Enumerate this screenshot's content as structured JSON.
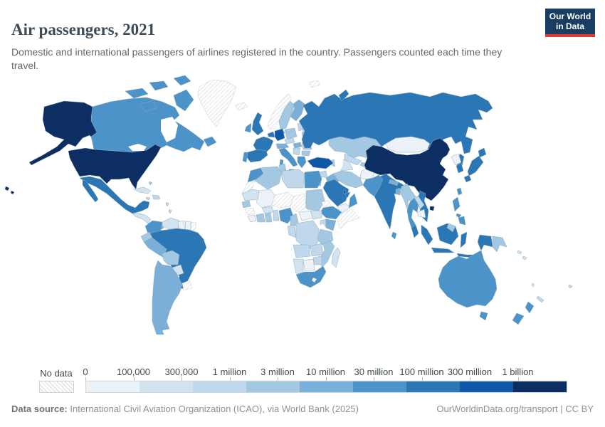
{
  "header": {
    "title": "Air passengers, 2021",
    "subtitle": "Domestic and international passengers of airlines registered in the country. Passengers counted each time they travel.",
    "logo": {
      "line1": "Our World",
      "line2": "in Data",
      "bg": "#1a3e63",
      "accent": "#e0392f"
    }
  },
  "legend": {
    "no_data_label": "No data",
    "ticks": [
      "0",
      "100,000",
      "300,000",
      "1 million",
      "3 million",
      "10 million",
      "30 million",
      "100 million",
      "300 million",
      "1 billion"
    ],
    "colors": [
      "#edf2f8",
      "#d2e3f0",
      "#c0d8eb",
      "#a3c8e2",
      "#7ab0d7",
      "#4b93c8",
      "#2b76b4",
      "#0f57a8",
      "#0d2e63"
    ]
  },
  "chart_data": {
    "type": "heatmap",
    "variant": "choropleth-world-map",
    "title": "Air passengers, 2021",
    "unit": "passengers carried per year",
    "legend_ticks": [
      "0",
      "100,000",
      "300,000",
      "1 million",
      "3 million",
      "10 million",
      "30 million",
      "100 million",
      "300 million",
      "1 billion"
    ],
    "bin_labels": [
      "0–100,000",
      "100,000–300,000",
      "300,000–1 million",
      "1 million–3 million",
      "3 million–10 million",
      "10 million–30 million",
      "30 million–100 million",
      "100 million–300 million",
      "300 million–1 billion"
    ],
    "no_data_label": "No data",
    "values": {
      "United States": 9,
      "Canada": 6,
      "Greenland": 0,
      "Mexico": 7,
      "Central America": 2,
      "Costa Rica": 3,
      "Panama": 5,
      "Cuba": 2,
      "Hispaniola": 3,
      "Jamaica": 3,
      "Bahamas": 4,
      "Lesser Antilles": 3,
      "Colombia": 6,
      "Venezuela": 2,
      "Guyana": 1,
      "Suriname": 1,
      "French Guiana": 0,
      "Ecuador": 4,
      "Peru": 5,
      "Brazil": 7,
      "Bolivia": 4,
      "Paraguay": 2,
      "Uruguay": 0,
      "Argentina": 5,
      "Chile": 5,
      "Iceland": 0,
      "Norway": 0,
      "Sweden": 4,
      "Finland": 5,
      "Denmark": 6,
      "United Kingdom": 7,
      "Ireland": 6,
      "Netherlands": 7,
      "Germany": 8,
      "France": 7,
      "Spain": 7,
      "Portugal": 6,
      "Poland": 4,
      "Czechia": 3,
      "Austria": 5,
      "Italy": 6,
      "Hungary": 5,
      "Balkans": 3,
      "Romania": 4,
      "Bulgaria": 4,
      "Greece": 6,
      "Baltics": 3,
      "Belarus": 3,
      "Ukraine": 4,
      "Russia": 7,
      "Turkey": 8,
      "Syria": 3,
      "Iraq": 5,
      "Iran": 4,
      "Israel": 5,
      "Saudi Arabia": 7,
      "Yemen": 1,
      "Oman": 6,
      "United Arab Emirates": 7,
      "Qatar": 8,
      "Caucasus": 4,
      "Kazakhstan": 4,
      "Uzbekistan": 3,
      "Turkmenistan": 2,
      "Kyrgyzstan": 4,
      "Tajikistan": 4,
      "Afghanistan": 1,
      "Pakistan": 6,
      "India": 7,
      "Nepal": 5,
      "Bangladesh": 5,
      "Sri Lanka": 6,
      "China": 9,
      "Mongolia": 1,
      "North Korea": 1,
      "South Korea": 7,
      "Japan": 7,
      "Taiwan": 6,
      "Myanmar": 4,
      "Thailand": 6,
      "Laos": 3,
      "Cambodia": 1,
      "Vietnam": 7,
      "Malaysia": 7,
      "Brunei": 4,
      "Indonesia": 7,
      "Philippines": 6,
      "Papua New Guinea": 4,
      "Solomon Islands": 2,
      "Vanuatu": 2,
      "Australia": 6,
      "New Zealand": 6,
      "New Caledonia": 3,
      "Fiji": 3,
      "Morocco": 6,
      "Western Sahara": 0,
      "Algeria": 4,
      "Tunisia": 4,
      "Libya": 3,
      "Egypt": 6,
      "Mauritania": 2,
      "Mali": 1,
      "Niger": 0,
      "Chad": 0,
      "Sudan": 4,
      "Eritrea": 0,
      "Ethiopia": 6,
      "Somalia": 0,
      "Senegal": 4,
      "Guinea": 0,
      "Sierra Leone": 1,
      "Cote d'Ivoire": 4,
      "Ghana": 4,
      "Burkina Faso": 2,
      "Benin": 3,
      "Nigeria": 6,
      "Cameroon": 4,
      "Central African Republic": 1,
      "South Sudan": 2,
      "Uganda": 3,
      "Kenya": 5,
      "Gabon": 3,
      "Democratic Republic of Congo": 3,
      "Tanzania": 4,
      "Angola": 3,
      "Zambia": 3,
      "Zimbabwe": 3,
      "Mozambique": 4,
      "Botswana": 1,
      "Namibia": 2,
      "South Africa": 6,
      "Lesotho": 1,
      "Madagascar": 2
    }
  },
  "footer": {
    "source_label": "Data source:",
    "source_text": " International Civil Aviation Organization (ICAO), via World Bank (2025)",
    "right_text": "OurWorldinData.org/transport | CC BY"
  }
}
